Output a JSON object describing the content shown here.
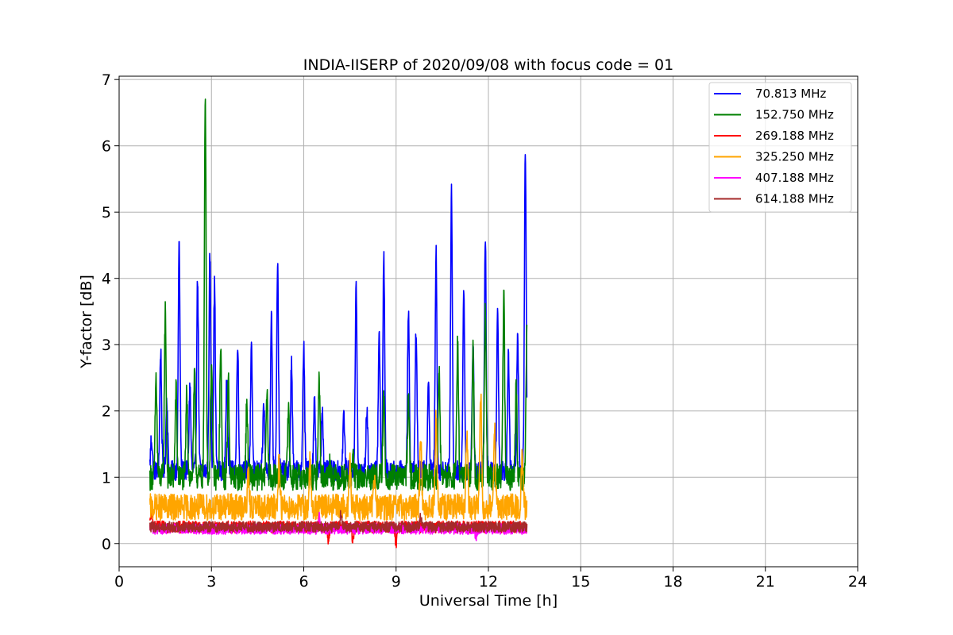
{
  "chart_data": {
    "type": "line",
    "title": "INDIA-IISERP of 2020/09/08 with focus code = 01",
    "xlabel": "Universal Time [h]",
    "ylabel": "Y-factor [dB]",
    "xlim": [
      0,
      24
    ],
    "ylim": [
      -0.35,
      7.05
    ],
    "xticks": [
      0,
      3,
      6,
      9,
      12,
      15,
      18,
      21,
      24
    ],
    "yticks": [
      0,
      1,
      2,
      3,
      4,
      5,
      6,
      7
    ],
    "grid": true,
    "legend_position": "top-right",
    "series": [
      {
        "name": " 70.813 MHz",
        "color": "#0000ff",
        "baseline": 1.1,
        "noise": 0.15,
        "peaks": [
          [
            1.05,
            1.6
          ],
          [
            1.35,
            2.9
          ],
          [
            1.55,
            2.2
          ],
          [
            1.95,
            4.55
          ],
          [
            2.3,
            2.4
          ],
          [
            2.55,
            4.0
          ],
          [
            2.95,
            4.35
          ],
          [
            3.1,
            3.9
          ],
          [
            3.5,
            2.6
          ],
          [
            3.85,
            3.05
          ],
          [
            4.3,
            2.9
          ],
          [
            4.7,
            2.1
          ],
          [
            4.95,
            3.4
          ],
          [
            5.15,
            4.25
          ],
          [
            5.6,
            2.7
          ],
          [
            6.0,
            3.0
          ],
          [
            6.35,
            2.2
          ],
          [
            6.6,
            2.05
          ],
          [
            7.3,
            1.95
          ],
          [
            7.7,
            3.95
          ],
          [
            8.05,
            2.0
          ],
          [
            8.45,
            3.2
          ],
          [
            8.6,
            4.35
          ],
          [
            9.4,
            3.5
          ],
          [
            9.65,
            3.25
          ],
          [
            10.05,
            2.5
          ],
          [
            10.3,
            4.4
          ],
          [
            10.8,
            5.35
          ],
          [
            11.2,
            3.85
          ],
          [
            11.5,
            3.05
          ],
          [
            11.9,
            4.6
          ],
          [
            12.3,
            3.5
          ],
          [
            12.65,
            2.8
          ],
          [
            12.95,
            3.2
          ],
          [
            13.2,
            6.0
          ]
        ]
      },
      {
        "name": "152.750 MHz",
        "color": "#008000",
        "baseline": 1.0,
        "noise": 0.2,
        "peaks": [
          [
            1.2,
            2.5
          ],
          [
            1.5,
            3.5
          ],
          [
            1.85,
            2.3
          ],
          [
            2.2,
            2.3
          ],
          [
            2.45,
            2.5
          ],
          [
            2.8,
            6.7
          ],
          [
            3.0,
            2.8
          ],
          [
            3.3,
            2.9
          ],
          [
            3.55,
            2.5
          ],
          [
            4.15,
            2.1
          ],
          [
            4.8,
            2.3
          ],
          [
            5.5,
            2.1
          ],
          [
            6.5,
            2.5
          ],
          [
            6.85,
            1.2
          ],
          [
            7.6,
            1.3
          ],
          [
            8.6,
            2.2
          ],
          [
            9.4,
            2.2
          ],
          [
            10.4,
            2.6
          ],
          [
            11.0,
            3.0
          ],
          [
            11.5,
            3.0
          ],
          [
            11.9,
            3.5
          ],
          [
            12.5,
            3.7
          ],
          [
            12.9,
            2.3
          ],
          [
            13.25,
            3.2
          ]
        ]
      },
      {
        "name": "269.188 MHz",
        "color": "#ff0000",
        "baseline": 0.25,
        "noise": 0.09,
        "peaks": [
          [
            1.05,
            0.47
          ],
          [
            6.8,
            0.05
          ],
          [
            7.6,
            0.05
          ],
          [
            9.0,
            0.0
          ]
        ]
      },
      {
        "name": "325.250 MHz",
        "color": "#ffa500",
        "baseline": 0.55,
        "noise": 0.2,
        "peaks": [
          [
            4.2,
            1.0
          ],
          [
            5.2,
            1.3
          ],
          [
            6.2,
            1.2
          ],
          [
            7.5,
            1.2
          ],
          [
            8.3,
            1.0
          ],
          [
            9.8,
            1.6
          ],
          [
            10.3,
            1.9
          ],
          [
            11.3,
            1.6
          ],
          [
            11.75,
            2.3
          ],
          [
            12.2,
            1.8
          ],
          [
            13.1,
            1.35
          ]
        ]
      },
      {
        "name": "407.188 MHz",
        "color": "#ff00ff",
        "baseline": 0.22,
        "noise": 0.08,
        "peaks": [
          [
            6.5,
            0.45
          ],
          [
            11.6,
            0.1
          ]
        ]
      },
      {
        "name": "614.188 MHz",
        "color": "#a52a2a",
        "baseline": 0.25,
        "noise": 0.08,
        "peaks": [
          [
            7.2,
            0.45
          ],
          [
            9.8,
            0.4
          ]
        ]
      }
    ],
    "x_range_of_data": [
      1.0,
      13.25
    ]
  }
}
